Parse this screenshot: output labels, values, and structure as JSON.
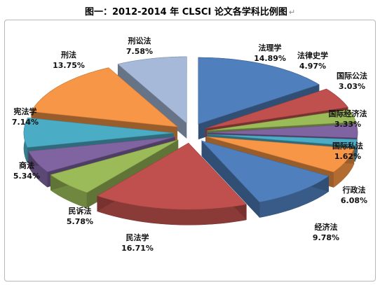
{
  "title": "图一：2012-2014 年 CLSCI 论文各学科比例图",
  "title_mark": "↵",
  "chart_data": {
    "type": "pie",
    "style": "3d-exploded",
    "title": "图一：2012-2014 年 CLSCI 论文各学科比例图",
    "slices": [
      {
        "name": "法理学",
        "value": 14.89,
        "label": "14.89%",
        "color": "#4f7fbd"
      },
      {
        "name": "法律史学",
        "value": 4.97,
        "label": "4.97%",
        "color": "#c0504d"
      },
      {
        "name": "国际公法",
        "value": 3.03,
        "label": "3.03%",
        "color": "#9bbb59"
      },
      {
        "name": "国际经济法",
        "value": 3.33,
        "label": "3.33%",
        "color": "#8064a2"
      },
      {
        "name": "国际私法",
        "value": 1.62,
        "label": "1.62%",
        "color": "#4bacc6"
      },
      {
        "name": "行政法",
        "value": 6.08,
        "label": "6.08%",
        "color": "#f79646"
      },
      {
        "name": "经济法",
        "value": 9.78,
        "label": "9.78%",
        "color": "#4f7fbd"
      },
      {
        "name": "民法学",
        "value": 16.71,
        "label": "16.71%",
        "color": "#c0504d"
      },
      {
        "name": "民诉法",
        "value": 5.78,
        "label": "5.78%",
        "color": "#9bbb59"
      },
      {
        "name": "商法",
        "value": 5.34,
        "label": "5.34%",
        "color": "#8064a2"
      },
      {
        "name": "宪法学",
        "value": 7.14,
        "label": "7.14%",
        "color": "#4bacc6"
      },
      {
        "name": "刑法",
        "value": 13.75,
        "label": "13.75%",
        "color": "#f79646"
      },
      {
        "name": "刑讼法",
        "value": 7.58,
        "label": "7.58%",
        "color": "#a6b9d9"
      }
    ],
    "legend": "none",
    "data_labels": "category name and percentage"
  }
}
